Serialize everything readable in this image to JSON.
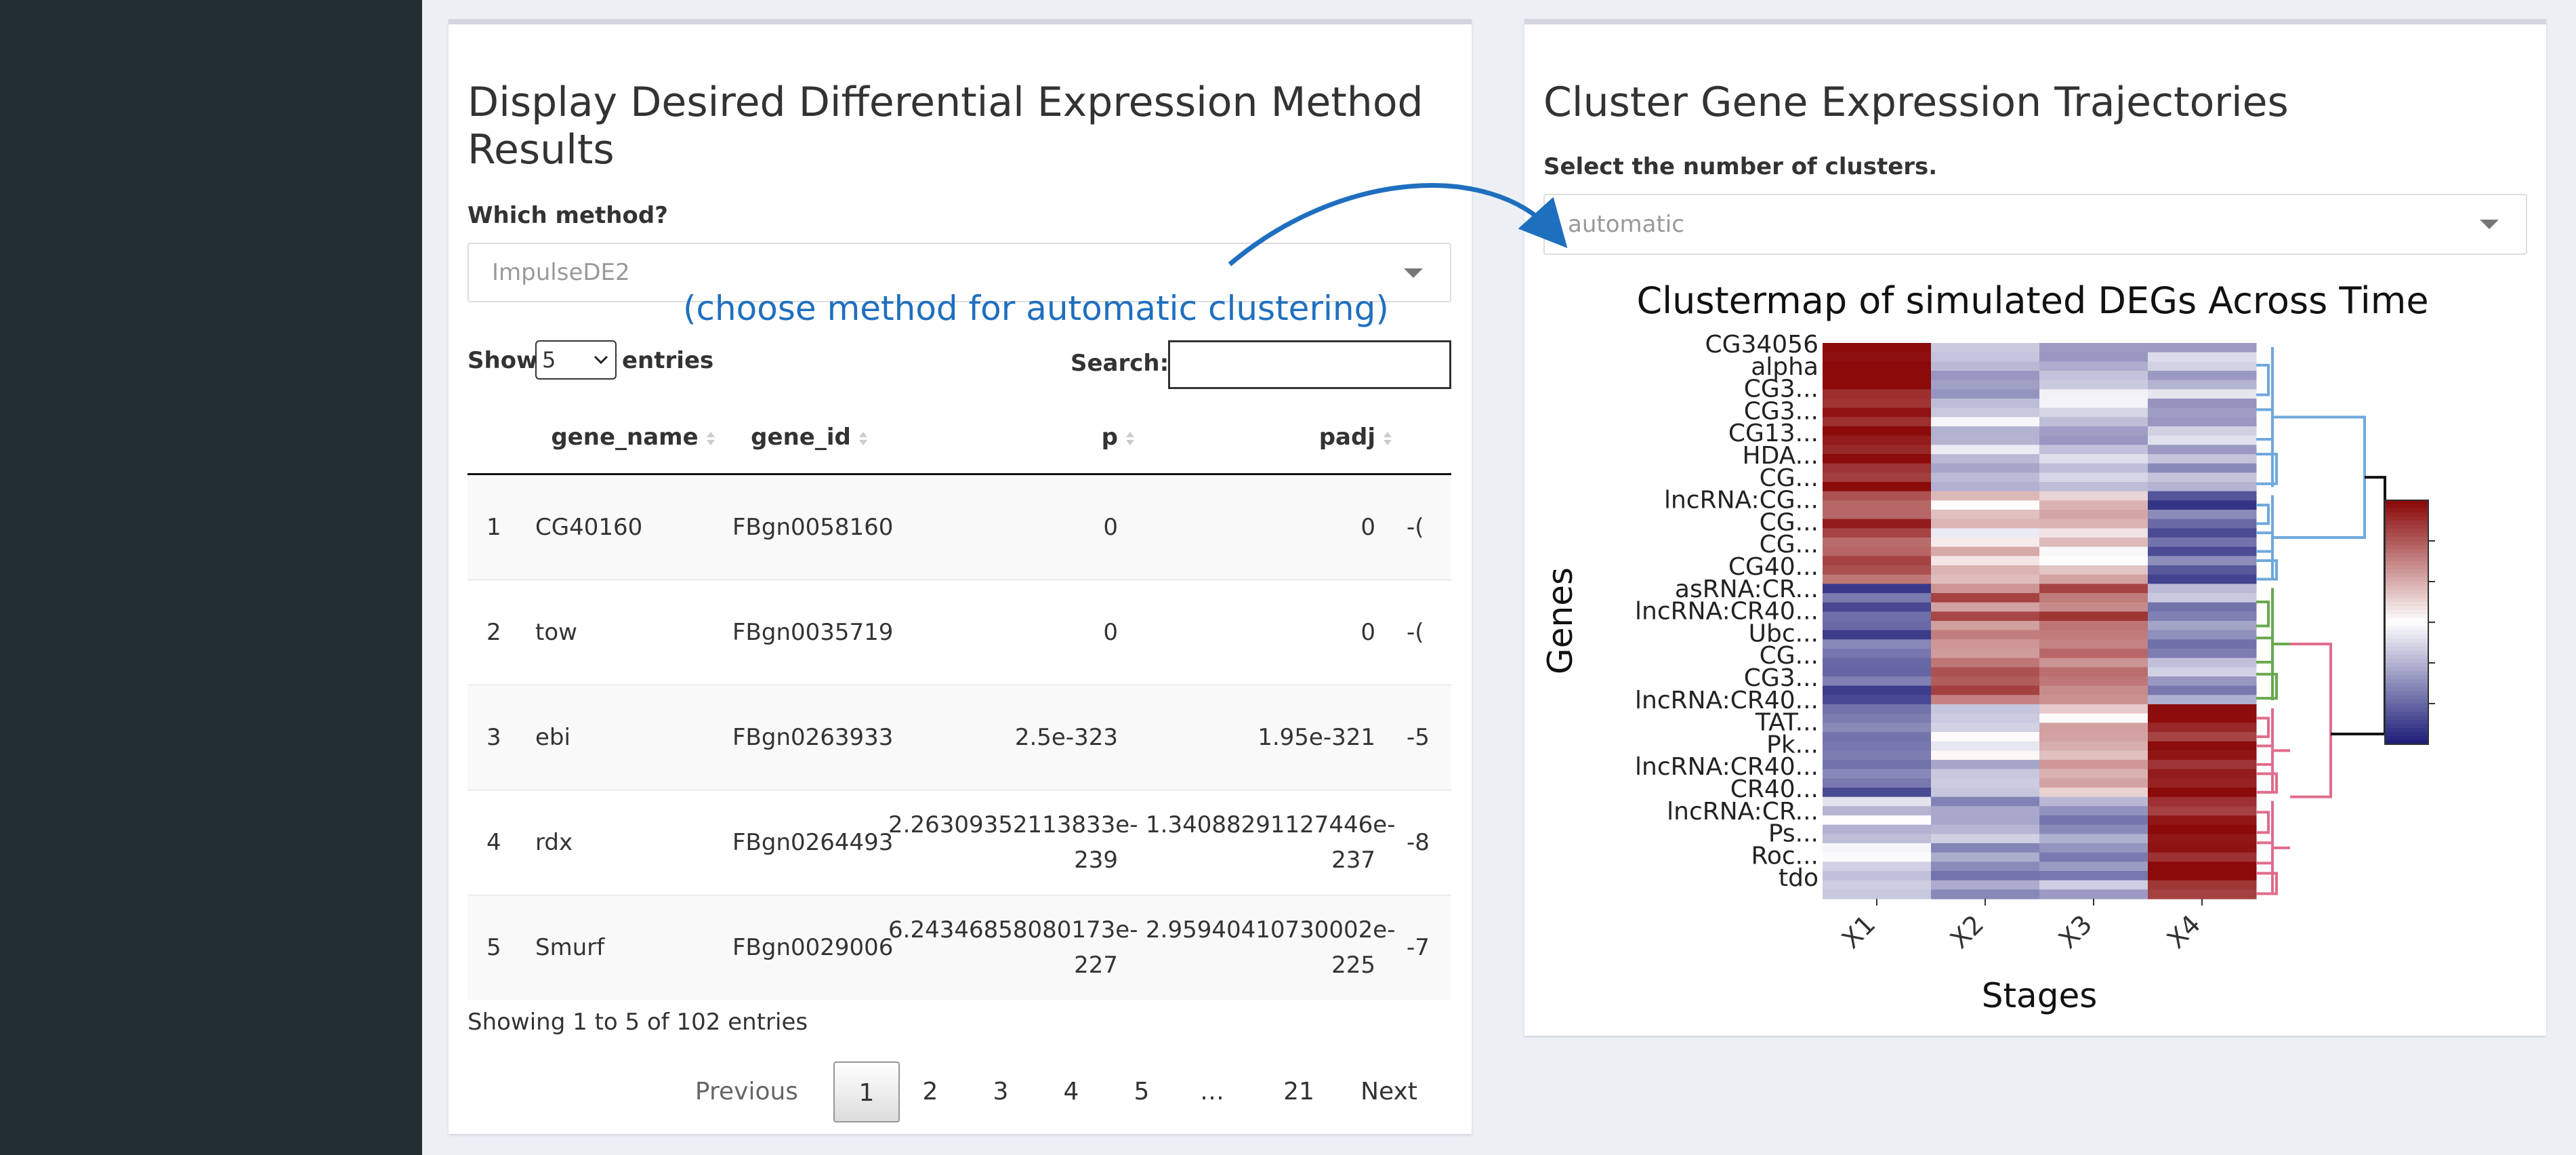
{
  "left_panel": {
    "title_line1": "Display Desired Differential Expression Method",
    "title_line2": "Results",
    "method_label": "Which method?",
    "method_value": "ImpulseDE2",
    "annotation": "(choose method for automatic clustering)",
    "show_label": "Show",
    "entries_value": "5",
    "entries_label": "entries",
    "search_label": "Search:",
    "columns": [
      "",
      "gene_name",
      "gene_id",
      "p",
      "padj"
    ],
    "rows": [
      {
        "idx": "1",
        "gene_name": "CG40160",
        "gene_id": "FBgn0058160",
        "p": "0",
        "padj": "0",
        "extra": "-("
      },
      {
        "idx": "2",
        "gene_name": "tow",
        "gene_id": "FBgn0035719",
        "p": "0",
        "padj": "0",
        "extra": "-("
      },
      {
        "idx": "3",
        "gene_name": "ebi",
        "gene_id": "FBgn0263933",
        "p": "2.5e-323",
        "padj": "1.95e-321",
        "extra": "-5"
      },
      {
        "idx": "4",
        "gene_name": "rdx",
        "gene_id": "FBgn0264493",
        "p": "2.26309352113833e-239",
        "padj": "1.34088291127446e-237",
        "extra": "-8"
      },
      {
        "idx": "5",
        "gene_name": "Smurf",
        "gene_id": "FBgn0029006",
        "p": "6.24346858080173e-227",
        "padj": "2.95940410730002e-225",
        "extra": "-7"
      }
    ],
    "info": "Showing 1 to 5 of 102 entries",
    "pager": {
      "previous": "Previous",
      "pages": [
        "1",
        "2",
        "3",
        "4",
        "5",
        "…",
        "21"
      ],
      "next": "Next"
    }
  },
  "right_panel": {
    "title": "Cluster Gene Expression Trajectories",
    "clusters_label": "Select the number of clusters.",
    "clusters_value": "automatic"
  },
  "chart_data": {
    "type": "heatmap",
    "title": "Clustermap of simulated DEGs Across Time",
    "xlabel": "Stages",
    "ylabel": "Genes",
    "x": [
      "X1",
      "X2",
      "X3",
      "X4"
    ],
    "colorbar_ticks": [
      "1.0",
      "0.5",
      "0.0",
      "-0.5",
      "-1.0"
    ],
    "colorbar_range": [
      -1.5,
      1.5
    ],
    "colormap": [
      "#1f1f7a",
      "#ffffff",
      "#8b0a0a"
    ],
    "gene_labels": [
      "CG34056",
      "alpha",
      "CG3...",
      "CG3...",
      "CG13...",
      "HDA...",
      "CG...",
      "lncRNA:CG...",
      "CG...",
      "CG...",
      "CG40...",
      "asRNA:CR...",
      "lncRNA:CR40...",
      "Ubc...",
      "CG...",
      "CG3...",
      "lncRNA:CR40...",
      "TAT...",
      "Pk...",
      "lncRNA:CR40...",
      "CR40...",
      "lncRNA:CR...",
      "Ps...",
      "Roc...",
      "tdo"
    ],
    "groups": [
      {
        "name": "blue",
        "color": "#6fa8dc",
        "values": [
          1.5,
          -0.4,
          -0.4,
          -0.5
        ]
      },
      {
        "name": "blue-b",
        "color": "#6fa8dc",
        "values": [
          1.1,
          0.2,
          0.3,
          -1.1
        ]
      },
      {
        "name": "green",
        "color": "#6aa84f",
        "values": [
          -1.0,
          0.9,
          1.0,
          -0.6
        ]
      },
      {
        "name": "pink",
        "color": "#e06c8c",
        "values": [
          -0.9,
          -0.3,
          0.3,
          1.2
        ]
      },
      {
        "name": "pink-b",
        "color": "#e06c8c",
        "values": [
          -0.3,
          -0.6,
          -0.6,
          1.5
        ]
      }
    ]
  }
}
